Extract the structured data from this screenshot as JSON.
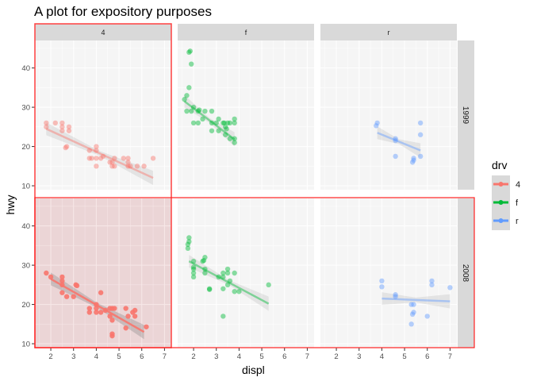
{
  "chart_data": {
    "type": "scatter",
    "title": "A plot for expository purposes",
    "xlabel": "displ",
    "ylabel": "hwy",
    "xlim": [
      1.3,
      7.3
    ],
    "ylim": [
      9,
      47
    ],
    "xticks": [
      "2",
      "3",
      "4",
      "5",
      "6",
      "7"
    ],
    "yticks": [
      "10",
      "20",
      "30",
      "40"
    ],
    "facet_cols": [
      "4",
      "f",
      "r"
    ],
    "facet_rows": [
      "1999",
      "2008"
    ],
    "legend": {
      "title": "drv",
      "position": "right",
      "entries": [
        {
          "label": "4",
          "color": "#F8766D"
        },
        {
          "label": "f",
          "color": "#00BA38"
        },
        {
          "label": "r",
          "color": "#619CFF"
        }
      ]
    },
    "highlights": [
      "column 4",
      "row 2008",
      "panel 4 / 2008"
    ],
    "panels": [
      {
        "col": "4",
        "row": "1999",
        "points": [
          [
            1.8,
            26
          ],
          [
            1.8,
            25
          ],
          [
            2.2,
            26
          ],
          [
            2.5,
            26
          ],
          [
            2.5,
            25
          ],
          [
            2.5,
            24
          ],
          [
            2.8,
            25
          ],
          [
            2.8,
            24
          ],
          [
            2.7,
            20
          ],
          [
            2.65,
            19.7
          ],
          [
            3.7,
            17
          ],
          [
            3.7,
            19
          ],
          [
            3.8,
            17
          ],
          [
            4,
            17
          ],
          [
            4,
            20
          ],
          [
            4,
            19
          ],
          [
            4,
            15
          ],
          [
            4.2,
            17
          ],
          [
            4.3,
            17.5
          ],
          [
            4.6,
            16
          ],
          [
            4.7,
            15
          ],
          [
            4.7,
            16
          ],
          [
            4.8,
            17
          ],
          [
            4.8,
            15
          ],
          [
            5.2,
            17
          ],
          [
            5.4,
            17
          ],
          [
            5.4,
            15
          ],
          [
            5.4,
            16
          ],
          [
            5.5,
            15
          ],
          [
            5.8,
            15
          ],
          [
            6.1,
            15
          ],
          [
            6.5,
            17
          ]
        ],
        "fit": [
          [
            1.8,
            24.5
          ],
          [
            6.5,
            12
          ]
        ]
      },
      {
        "col": "f",
        "row": "1999",
        "points": [
          [
            1.8,
            44
          ],
          [
            1.85,
            44.3
          ],
          [
            1.9,
            41
          ],
          [
            1.8,
            35
          ],
          [
            1.7,
            33
          ],
          [
            1.6,
            32
          ],
          [
            1.7,
            29
          ],
          [
            1.9,
            29
          ],
          [
            2,
            30
          ],
          [
            2.2,
            29
          ],
          [
            2.25,
            29.3
          ],
          [
            2,
            26
          ],
          [
            2.2,
            26
          ],
          [
            2.4,
            27
          ],
          [
            2.5,
            29
          ],
          [
            2.8,
            29
          ],
          [
            2.8,
            26
          ],
          [
            2.8,
            24
          ],
          [
            3,
            26
          ],
          [
            3.1,
            27
          ],
          [
            3.3,
            26
          ],
          [
            3.35,
            26
          ],
          [
            3.4,
            25
          ],
          [
            3.5,
            26
          ],
          [
            3.6,
            26
          ],
          [
            3.4,
            23
          ],
          [
            3.1,
            24
          ],
          [
            3.8,
            27
          ],
          [
            3.8,
            26
          ],
          [
            3.8,
            22
          ],
          [
            3.8,
            21
          ],
          [
            3.6,
            22
          ],
          [
            3.45,
            24.5
          ]
        ],
        "fit": [
          [
            1.6,
            31.5
          ],
          [
            3.8,
            21.8
          ]
        ]
      },
      {
        "col": "r",
        "row": "1999",
        "points": [
          [
            3.8,
            26
          ],
          [
            3.75,
            25.3
          ],
          [
            4.6,
            22
          ],
          [
            4.6,
            21.5
          ],
          [
            4.6,
            17.5
          ],
          [
            5.4,
            17
          ],
          [
            5.4,
            16.5
          ],
          [
            5.35,
            16
          ],
          [
            5.7,
            17.5
          ],
          [
            5.7,
            23
          ],
          [
            5.7,
            26
          ]
        ],
        "fit": [
          [
            3.8,
            23.5
          ],
          [
            5.7,
            19
          ]
        ]
      },
      {
        "col": "4",
        "row": "2008",
        "points": [
          [
            1.8,
            28
          ],
          [
            2,
            27
          ],
          [
            2.5,
            27
          ],
          [
            2.5,
            26
          ],
          [
            2.5,
            25
          ],
          [
            2.5,
            23
          ],
          [
            2.7,
            22
          ],
          [
            3,
            22
          ],
          [
            3.1,
            25
          ],
          [
            3.15,
            24.8
          ],
          [
            3.7,
            19
          ],
          [
            3.7,
            18
          ],
          [
            4,
            20
          ],
          [
            4,
            19
          ],
          [
            4,
            18
          ],
          [
            4.2,
            23
          ],
          [
            4.2,
            18
          ],
          [
            4.4,
            18.5
          ],
          [
            4.6,
            17
          ],
          [
            4.6,
            19
          ],
          [
            4.7,
            19
          ],
          [
            4.7,
            16
          ],
          [
            4.7,
            12
          ],
          [
            4.7,
            12.5
          ],
          [
            4.8,
            19
          ],
          [
            5.3,
            19
          ],
          [
            5.3,
            14
          ],
          [
            5.4,
            17
          ],
          [
            5.6,
            18
          ],
          [
            5.7,
            17
          ],
          [
            5.7,
            18.5
          ],
          [
            6.2,
            14.3
          ]
        ],
        "fit": [
          [
            2,
            26.5
          ],
          [
            6.1,
            13
          ]
        ]
      },
      {
        "col": "f",
        "row": "2008",
        "points": [
          [
            1.8,
            37
          ],
          [
            1.8,
            36
          ],
          [
            1.75,
            35.3
          ],
          [
            1.75,
            34.3
          ],
          [
            2,
            31
          ],
          [
            2,
            29
          ],
          [
            2,
            28
          ],
          [
            2,
            27
          ],
          [
            2,
            29.5
          ],
          [
            2.4,
            31
          ],
          [
            2.45,
            31.2
          ],
          [
            2.5,
            32
          ],
          [
            2.5,
            29
          ],
          [
            2.5,
            28
          ],
          [
            2.7,
            24
          ],
          [
            2.7,
            23.8
          ],
          [
            3.1,
            27
          ],
          [
            3.3,
            28
          ],
          [
            3.3,
            27
          ],
          [
            3.3,
            24
          ],
          [
            3.5,
            29
          ],
          [
            3.5,
            28
          ],
          [
            3.5,
            25
          ],
          [
            3.6,
            26
          ],
          [
            3.8,
            28
          ],
          [
            3.8,
            23.3
          ],
          [
            4,
            23.3
          ],
          [
            3.3,
            17
          ],
          [
            5.3,
            25
          ]
        ],
        "fit": [
          [
            1.8,
            31
          ],
          [
            5.3,
            20.2
          ]
        ]
      },
      {
        "col": "r",
        "row": "2008",
        "points": [
          [
            4,
            26
          ],
          [
            4,
            24.5
          ],
          [
            4.6,
            22
          ],
          [
            4.6,
            22.5
          ],
          [
            5.3,
            20
          ],
          [
            5.4,
            20
          ],
          [
            5.4,
            18
          ],
          [
            5.35,
            17.5
          ],
          [
            5.3,
            15
          ],
          [
            6,
            17
          ],
          [
            6.2,
            26
          ],
          [
            6.2,
            25
          ],
          [
            7,
            24.3
          ]
        ],
        "fit": [
          [
            4,
            21.5
          ],
          [
            7,
            20.8
          ]
        ]
      }
    ]
  }
}
